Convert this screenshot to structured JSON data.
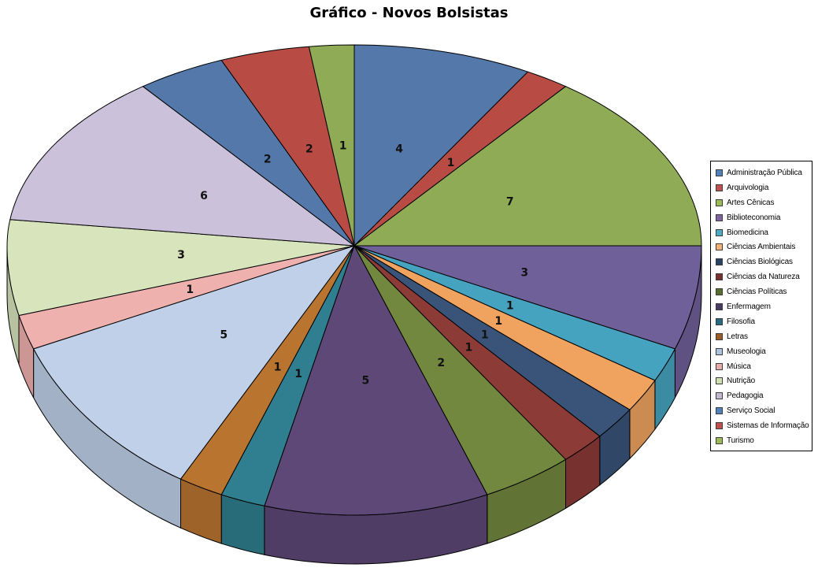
{
  "title": "Gráfico - Novos Bolsistas",
  "chart_data": {
    "type": "pie",
    "style": "3d",
    "title": "Gráfico - Novos Bolsistas",
    "direction": "clockwise",
    "start_angle_deg": 0,
    "legend_position": "right",
    "data_labels": "values",
    "total": 48,
    "categories": [
      "Administração Pública",
      "Arquivologia",
      "Artes Cênicas",
      "Biblioteconomia",
      "Biomedicina",
      "Ciências Ambientais",
      "Ciências Biológicas",
      "Ciências da Natureza",
      "Ciências Políticas",
      "Enfermagem",
      "Filosofia",
      "Letras",
      "Museologia",
      "Música",
      "Nutrição",
      "Pedagogia",
      "Serviço Social",
      "Sistemas de Informação",
      "Turismo"
    ],
    "values": [
      4,
      1,
      7,
      3,
      1,
      1,
      1,
      1,
      2,
      5,
      1,
      1,
      5,
      1,
      3,
      6,
      2,
      2,
      1
    ],
    "slice_colors": [
      "#5378A9",
      "#B94B45",
      "#8FAB56",
      "#70609A",
      "#45A3BF",
      "#EFA35F",
      "#3A5379",
      "#8C3B37",
      "#72883E",
      "#5D4877",
      "#2F7F90",
      "#B9742F",
      "#BFD0E8",
      "#EFB1AE",
      "#D8E4BC",
      "#CCC1DA",
      "#5378A9",
      "#B94B45",
      "#8FAB56"
    ],
    "legend_colors": [
      "#4F81BD",
      "#C0504D",
      "#9BBB59",
      "#8064A2",
      "#4BACC6",
      "#F4B175",
      "#2A4466",
      "#7A302C",
      "#57702E",
      "#4A3A66",
      "#27697F",
      "#9B5B22",
      "#AEC3DE",
      "#E8ACAA",
      "#D0DFB0",
      "#C3B7D3",
      "#4F81BD",
      "#C0504D",
      "#9BBB59"
    ],
    "outline_color": "#000000",
    "background_color": "#FFFFFF",
    "label_color": "#111111"
  }
}
